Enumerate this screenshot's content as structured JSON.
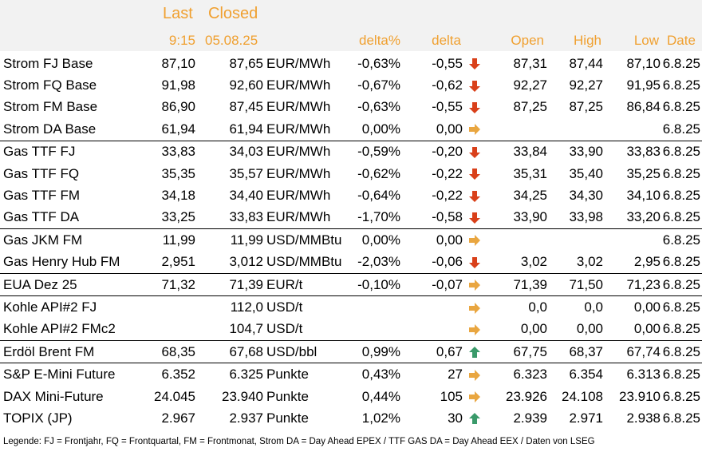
{
  "header": {
    "last_title": "Last",
    "closed_title": "Closed",
    "last_time": "9:15",
    "closed_date": "05.08.25",
    "delta_pct": "delta%",
    "delta": "delta",
    "open": "Open",
    "high": "High",
    "low": "Low",
    "date": "Date"
  },
  "colors": {
    "header_bg": "#f2f2f2",
    "header_text": "#f0a030",
    "arrow_down": "#d9401a",
    "arrow_flat": "#e9a640",
    "arrow_up": "#3a9a6a"
  },
  "rows": [
    {
      "name": "Strom FJ Base",
      "last": "87,10",
      "closed": "87,65",
      "unit": "EUR/MWh",
      "delta_pct": "-0,63%",
      "delta": "-0,55",
      "trend": "down",
      "open": "87,31",
      "high": "87,44",
      "low": "87,10",
      "date": "6.8.25"
    },
    {
      "name": "Strom FQ Base",
      "last": "91,98",
      "closed": "92,60",
      "unit": "EUR/MWh",
      "delta_pct": "-0,67%",
      "delta": "-0,62",
      "trend": "down",
      "open": "92,27",
      "high": "92,27",
      "low": "91,95",
      "date": "6.8.25"
    },
    {
      "name": "Strom FM Base",
      "last": "86,90",
      "closed": "87,45",
      "unit": "EUR/MWh",
      "delta_pct": "-0,63%",
      "delta": "-0,55",
      "trend": "down",
      "open": "87,25",
      "high": "87,25",
      "low": "86,84",
      "date": "6.8.25"
    },
    {
      "name": "Strom DA Base",
      "last": "61,94",
      "closed": "61,94",
      "unit": "EUR/MWh",
      "delta_pct": "0,00%",
      "delta": "0,00",
      "trend": "flat",
      "open": "",
      "high": "",
      "low": "",
      "date": "6.8.25"
    },
    {
      "name": "Gas TTF FJ",
      "last": "33,83",
      "closed": "34,03",
      "unit": "EUR/MWh",
      "delta_pct": "-0,59%",
      "delta": "-0,20",
      "trend": "down",
      "open": "33,84",
      "high": "33,90",
      "low": "33,83",
      "date": "6.8.25"
    },
    {
      "name": "Gas TTF FQ",
      "last": "35,35",
      "closed": "35,57",
      "unit": "EUR/MWh",
      "delta_pct": "-0,62%",
      "delta": "-0,22",
      "trend": "down",
      "open": "35,31",
      "high": "35,40",
      "low": "35,25",
      "date": "6.8.25"
    },
    {
      "name": "Gas TTF FM",
      "last": "34,18",
      "closed": "34,40",
      "unit": "EUR/MWh",
      "delta_pct": "-0,64%",
      "delta": "-0,22",
      "trend": "down",
      "open": "34,25",
      "high": "34,30",
      "low": "34,10",
      "date": "6.8.25"
    },
    {
      "name": "Gas TTF DA",
      "last": "33,25",
      "closed": "33,83",
      "unit": "EUR/MWh",
      "delta_pct": "-1,70%",
      "delta": "-0,58",
      "trend": "down",
      "open": "33,90",
      "high": "33,98",
      "low": "33,20",
      "date": "6.8.25"
    },
    {
      "name": "Gas JKM FM",
      "last": "11,99",
      "closed": "11,99",
      "unit": "USD/MMBtu",
      "delta_pct": "0,00%",
      "delta": "0,00",
      "trend": "flat",
      "open": "",
      "high": "",
      "low": "",
      "date": "6.8.25"
    },
    {
      "name": "Gas Henry Hub FM",
      "last": "2,951",
      "closed": "3,012",
      "unit": "USD/MMBtu",
      "delta_pct": "-2,03%",
      "delta": "-0,06",
      "trend": "down",
      "open": "3,02",
      "high": "3,02",
      "low": "2,95",
      "date": "6.8.25"
    },
    {
      "name": "EUA Dez 25",
      "last": "71,32",
      "closed": "71,39",
      "unit": "EUR/t",
      "delta_pct": "-0,10%",
      "delta": "-0,07",
      "trend": "flat",
      "open": "71,39",
      "high": "71,50",
      "low": "71,23",
      "date": "6.8.25"
    },
    {
      "name": "Kohle API#2 FJ",
      "last": "",
      "closed": "112,0",
      "unit": "USD/t",
      "delta_pct": "",
      "delta": "",
      "trend": "flat",
      "open": "0,0",
      "high": "0,0",
      "low": "0,00",
      "date": "6.8.25"
    },
    {
      "name": "Kohle API#2 FMc2",
      "last": "",
      "closed": "104,7",
      "unit": "USD/t",
      "delta_pct": "",
      "delta": "",
      "trend": "flat",
      "open": "0,00",
      "high": "0,00",
      "low": "0,00",
      "date": "6.8.25"
    },
    {
      "name": "Erdöl Brent FM",
      "last": "68,35",
      "closed": "67,68",
      "unit": "USD/bbl",
      "delta_pct": "0,99%",
      "delta": "0,67",
      "trend": "up",
      "open": "67,75",
      "high": "68,37",
      "low": "67,74",
      "date": "6.8.25"
    },
    {
      "name": "S&P E-Mini Future",
      "last": "6.352",
      "closed": "6.325",
      "unit": "Punkte",
      "delta_pct": "0,43%",
      "delta": "27",
      "trend": "flat",
      "open": "6.323",
      "high": "6.354",
      "low": "6.313",
      "date": "6.8.25"
    },
    {
      "name": "DAX Mini-Future",
      "last": "24.045",
      "closed": "23.940",
      "unit": "Punkte",
      "delta_pct": "0,44%",
      "delta": "105",
      "trend": "flat",
      "open": "23.926",
      "high": "24.108",
      "low": "23.910",
      "date": "6.8.25"
    },
    {
      "name": "TOPIX (JP)",
      "last": "2.967",
      "closed": "2.937",
      "unit": "Punkte",
      "delta_pct": "1,02%",
      "delta": "30",
      "trend": "up",
      "open": "2.939",
      "high": "2.971",
      "low": "2.938",
      "date": "6.8.25"
    }
  ],
  "separator_before_rows": [
    4,
    8,
    10,
    11,
    13,
    14
  ],
  "legend": "Legende: FJ = Frontjahr, FQ = Frontquartal, FM = Frontmonat, Strom DA = Day Ahead EPEX / TTF GAS DA = Day Ahead EEX / Daten von LSEG"
}
